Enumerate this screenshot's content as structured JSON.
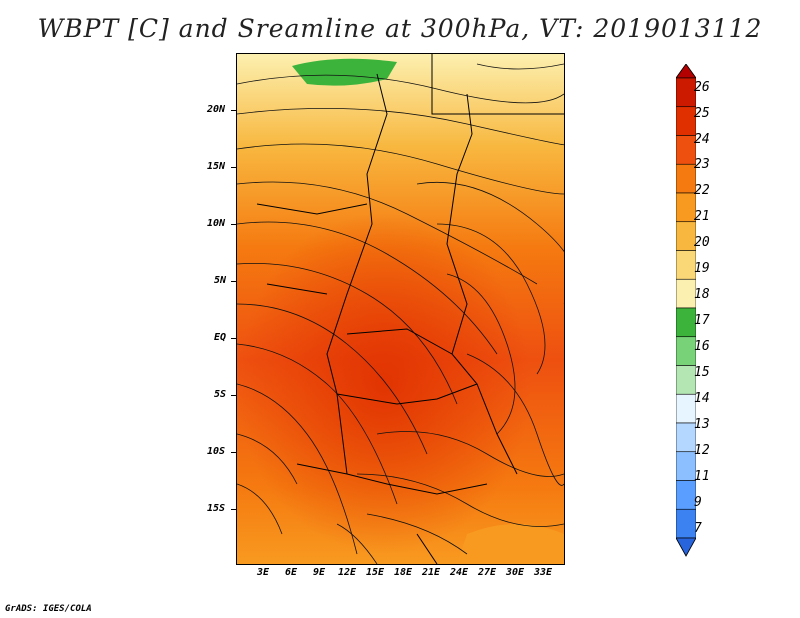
{
  "title": "WBPT [C] and Sreamline at 300hPa, VT: 2019013112",
  "credit": "GrADS: IGES/COLA",
  "lat_labels": [
    "20N",
    "15N",
    "10N",
    "5N",
    "EQ",
    "5S",
    "10S",
    "15S"
  ],
  "lon_labels": [
    "3E",
    "6E",
    "9E",
    "12E",
    "15E",
    "18E",
    "21E",
    "24E",
    "27E",
    "30E",
    "33E"
  ],
  "colorbar": {
    "levels": [
      "26",
      "25",
      "24",
      "23",
      "22",
      "21",
      "20",
      "19",
      "18",
      "17",
      "16",
      "15",
      "14",
      "13",
      "12",
      "11",
      "9",
      "7"
    ],
    "colors": [
      "#b30000",
      "#cc1a00",
      "#e03000",
      "#ee5010",
      "#f57a10",
      "#f89a20",
      "#f8b840",
      "#fad878",
      "#fcf0b0",
      "#3cb43c",
      "#78d278",
      "#b4e6b4",
      "#e6f5ff",
      "#b4d7ff",
      "#8cbfff",
      "#5a9fff",
      "#3c82f0",
      "#2864dc"
    ]
  },
  "map_region": {
    "lon_range": [
      0,
      35
    ],
    "lat_range": [
      -20,
      25
    ],
    "field": "wet-bulb potential temperature at 300hPa with streamlines"
  }
}
